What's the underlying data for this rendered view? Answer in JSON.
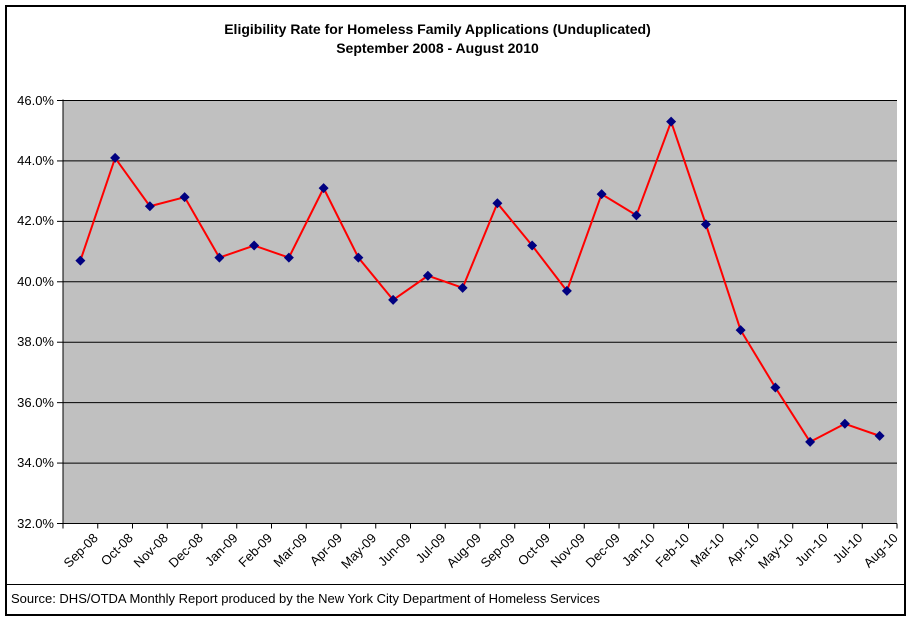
{
  "title": {
    "line1": "Eligibility Rate for Homeless Family Applications (Unduplicated)",
    "line2": "September 2008 - August 2010"
  },
  "source": "Source: DHS/OTDA Monthly Report produced by the New York City Department of Homeless Services",
  "chart_data": {
    "type": "line",
    "title": "Eligibility Rate for Homeless Family Applications (Unduplicated) September 2008 - August 2010",
    "xlabel": "",
    "ylabel": "",
    "categories": [
      "Sep-08",
      "Oct-08",
      "Nov-08",
      "Dec-08",
      "Jan-09",
      "Feb-09",
      "Mar-09",
      "Apr-09",
      "May-09",
      "Jun-09",
      "Jul-09",
      "Aug-09",
      "Sep-09",
      "Oct-09",
      "Nov-09",
      "Dec-09",
      "Jan-10",
      "Feb-10",
      "Mar-10",
      "Apr-10",
      "May-10",
      "Jun-10",
      "Jul-10",
      "Aug-10"
    ],
    "series": [
      {
        "name": "Eligibility Rate",
        "values": [
          40.7,
          44.1,
          42.5,
          42.8,
          40.8,
          41.2,
          40.8,
          43.1,
          40.8,
          39.4,
          40.2,
          39.8,
          42.6,
          41.2,
          39.7,
          42.9,
          42.2,
          45.3,
          41.9,
          38.4,
          36.5,
          34.7,
          35.3,
          34.9
        ]
      }
    ],
    "ylim": [
      32,
      46
    ],
    "ytick_step": 2,
    "yticks": [
      "46.0%",
      "44.0%",
      "42.0%",
      "40.0%",
      "38.0%",
      "36.0%",
      "34.0%",
      "32.0%"
    ],
    "grid": "horizontal",
    "legend": "none",
    "marker": "diamond",
    "colors": {
      "line": "#FF0000",
      "marker": "#000080",
      "plot_background": "#C0C0C0",
      "gridline": "#000000",
      "axis": "#000000",
      "text": "#000000",
      "chart_background": "#FFFFFF",
      "border": "#000000"
    }
  }
}
